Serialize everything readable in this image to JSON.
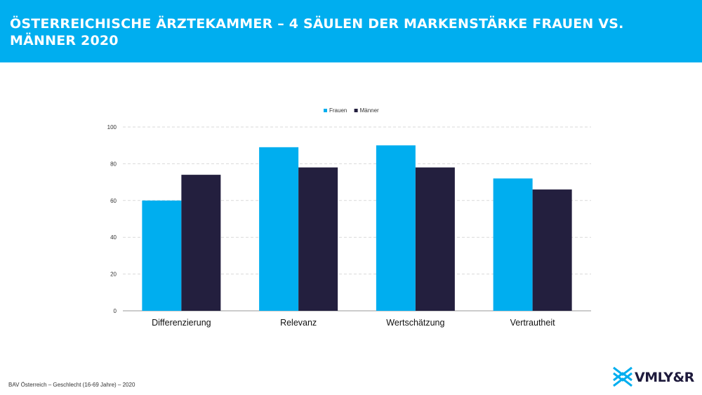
{
  "header": {
    "title": "ÖSTERREICHISCHE ÄRZTEKAMMER – 4 SÄULEN DER MARKENSTÄRKE FRAUEN VS. MÄNNER 2020"
  },
  "colors": {
    "accent": "#00aeef",
    "dark": "#231f3e"
  },
  "chart_data": {
    "type": "bar",
    "categories": [
      "Differenzierung",
      "Relevanz",
      "Wertschätzung",
      "Vertrautheit"
    ],
    "series": [
      {
        "name": "Frauen",
        "color": "#00aeef",
        "values": [
          60,
          89,
          90,
          72
        ]
      },
      {
        "name": "Männer",
        "color": "#231f3e",
        "values": [
          74,
          78,
          78,
          66
        ]
      }
    ],
    "yticks": [
      "0",
      "20",
      "40",
      "60",
      "80",
      "100"
    ],
    "ylim": [
      0,
      100
    ],
    "grid": true,
    "legend_position": "top-center"
  },
  "footer": {
    "source": "BAV Österreich – Geschlecht (16-69 Jahre) – 2020"
  },
  "logo": {
    "text": "VMLY&R",
    "icon": "vmlyr-logo-icon"
  }
}
